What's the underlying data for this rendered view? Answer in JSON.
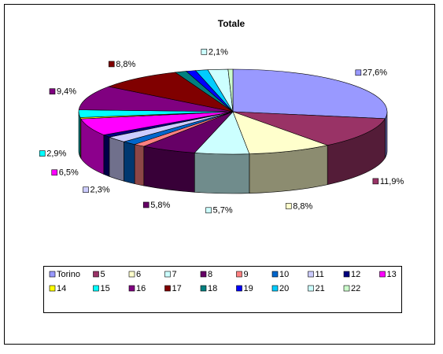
{
  "chart_data": {
    "type": "pie",
    "title": "Totale",
    "categories": [
      "Torino",
      "5",
      "6",
      "7",
      "8",
      "9",
      "10",
      "11",
      "12",
      "13",
      "14",
      "15",
      "16",
      "17",
      "18",
      "19",
      "20",
      "21",
      "22"
    ],
    "values": [
      27.6,
      11.9,
      8.8,
      5.7,
      5.8,
      1.2,
      1.5,
      2.3,
      1.0,
      6.5,
      0.5,
      2.9,
      9.4,
      8.8,
      1.2,
      1.0,
      1.3,
      2.1,
      0.5
    ],
    "value_labels": [
      "27,6%",
      "11,9%",
      "8,8%",
      "5,7%",
      "5,8%",
      null,
      null,
      "2,3%",
      null,
      "6,5%",
      null,
      "2,9%",
      "9,4%",
      "8,8%",
      null,
      null,
      null,
      "2,1%",
      null
    ],
    "colors": [
      "#9999FF",
      "#993366",
      "#FFFFCC",
      "#CCFFFF",
      "#660066",
      "#FF8080",
      "#0066CC",
      "#CCCCFF",
      "#000080",
      "#FF00FF",
      "#FFFF00",
      "#00FFFF",
      "#800080",
      "#800000",
      "#008080",
      "#0000FF",
      "#00CCFF",
      "#CCFFFF",
      "#CCFFCC"
    ],
    "legend": "bottom"
  }
}
